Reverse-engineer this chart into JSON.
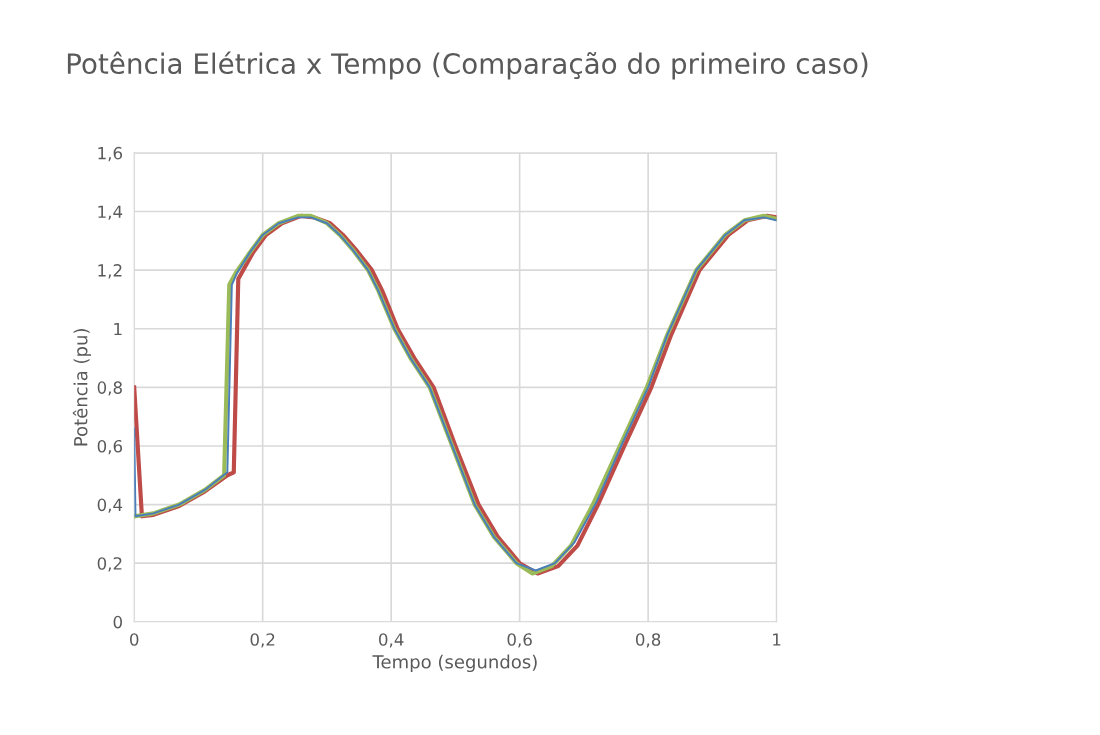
{
  "chart_data": {
    "type": "line",
    "title": "Potência Elétrica x Tempo (Comparação do primeiro caso)",
    "xlabel": "Tempo (segundos)",
    "ylabel": "Potência (pu)",
    "xlim": [
      0,
      1
    ],
    "xticks": [
      0,
      {
        "value": 0.2,
        "label": "0,2"
      },
      {
        "value": 0.4,
        "label": "0,4"
      },
      {
        "value": 0.6,
        "label": "0,6"
      },
      {
        "value": 0.8,
        "label": "0,8"
      },
      1
    ],
    "ylim": [
      0,
      1.6
    ],
    "yticks": [
      0,
      {
        "value": 0.2,
        "label": "0,2"
      },
      {
        "value": 0.4,
        "label": "0,4"
      },
      {
        "value": 0.6,
        "label": "0,6"
      },
      {
        "value": 0.8,
        "label": "0,8"
      },
      1,
      {
        "value": 1.2,
        "label": "1,2"
      },
      {
        "value": 1.4,
        "label": "1,4"
      },
      {
        "value": 1.6,
        "label": "1,6"
      }
    ],
    "grid": true,
    "marker": "none",
    "line_style": "solid",
    "series": [
      {
        "color": "#4a7ebb",
        "x": [
          0,
          0.002,
          0.03,
          0.07,
          0.11,
          0.145,
          0.152,
          0.16,
          0.18,
          0.2,
          0.225,
          0.255,
          0.275,
          0.3,
          0.32,
          0.34,
          0.364,
          0.38,
          0.405,
          0.43,
          0.46,
          0.495,
          0.53,
          0.56,
          0.595,
          0.625,
          0.655,
          0.685,
          0.72,
          0.76,
          0.8,
          0.83,
          0.875,
          0.92,
          0.95,
          0.98,
          1
        ],
        "values": [
          0.66,
          0.36,
          0.37,
          0.4,
          0.45,
          0.51,
          1.15,
          1.19,
          1.26,
          1.32,
          1.36,
          1.38,
          1.38,
          1.36,
          1.32,
          1.27,
          1.2,
          1.13,
          1.0,
          0.9,
          0.8,
          0.6,
          0.4,
          0.29,
          0.2,
          0.175,
          0.2,
          0.27,
          0.41,
          0.61,
          0.8,
          0.98,
          1.2,
          1.32,
          1.37,
          1.38,
          1.37
        ]
      },
      {
        "color": "#be4b48",
        "x": [
          0,
          0.012,
          0.03,
          0.07,
          0.11,
          0.145,
          0.155,
          0.162,
          0.185,
          0.205,
          0.23,
          0.26,
          0.28,
          0.305,
          0.325,
          0.345,
          0.37,
          0.386,
          0.41,
          0.436,
          0.466,
          0.5,
          0.536,
          0.566,
          0.6,
          0.628,
          0.66,
          0.69,
          0.722,
          0.763,
          0.805,
          0.836,
          0.88,
          0.925,
          0.955,
          0.985,
          1
        ],
        "values": [
          0.8,
          0.36,
          0.365,
          0.395,
          0.445,
          0.5,
          0.51,
          1.17,
          1.26,
          1.32,
          1.36,
          1.385,
          1.38,
          1.36,
          1.32,
          1.27,
          1.2,
          1.13,
          1.0,
          0.9,
          0.8,
          0.6,
          0.4,
          0.29,
          0.2,
          0.165,
          0.19,
          0.26,
          0.4,
          0.6,
          0.8,
          0.98,
          1.2,
          1.32,
          1.37,
          1.385,
          1.38
        ]
      },
      {
        "color": "#9bbb59",
        "x": [
          0,
          0.03,
          0.07,
          0.11,
          0.14,
          0.148,
          0.158,
          0.18,
          0.2,
          0.225,
          0.255,
          0.275,
          0.3,
          0.32,
          0.34,
          0.364,
          0.38,
          0.405,
          0.43,
          0.46,
          0.495,
          0.53,
          0.56,
          0.595,
          0.62,
          0.65,
          0.68,
          0.714,
          0.756,
          0.798,
          0.83,
          0.875,
          0.92,
          0.95,
          0.98,
          1
        ],
        "values": [
          0.36,
          0.37,
          0.4,
          0.45,
          0.5,
          1.15,
          1.19,
          1.26,
          1.32,
          1.36,
          1.385,
          1.385,
          1.36,
          1.32,
          1.27,
          1.2,
          1.13,
          1.0,
          0.9,
          0.8,
          0.6,
          0.4,
          0.29,
          0.2,
          0.165,
          0.19,
          0.26,
          0.4,
          0.6,
          0.8,
          0.98,
          1.2,
          1.32,
          1.37,
          1.385,
          1.375
        ]
      }
    ]
  }
}
